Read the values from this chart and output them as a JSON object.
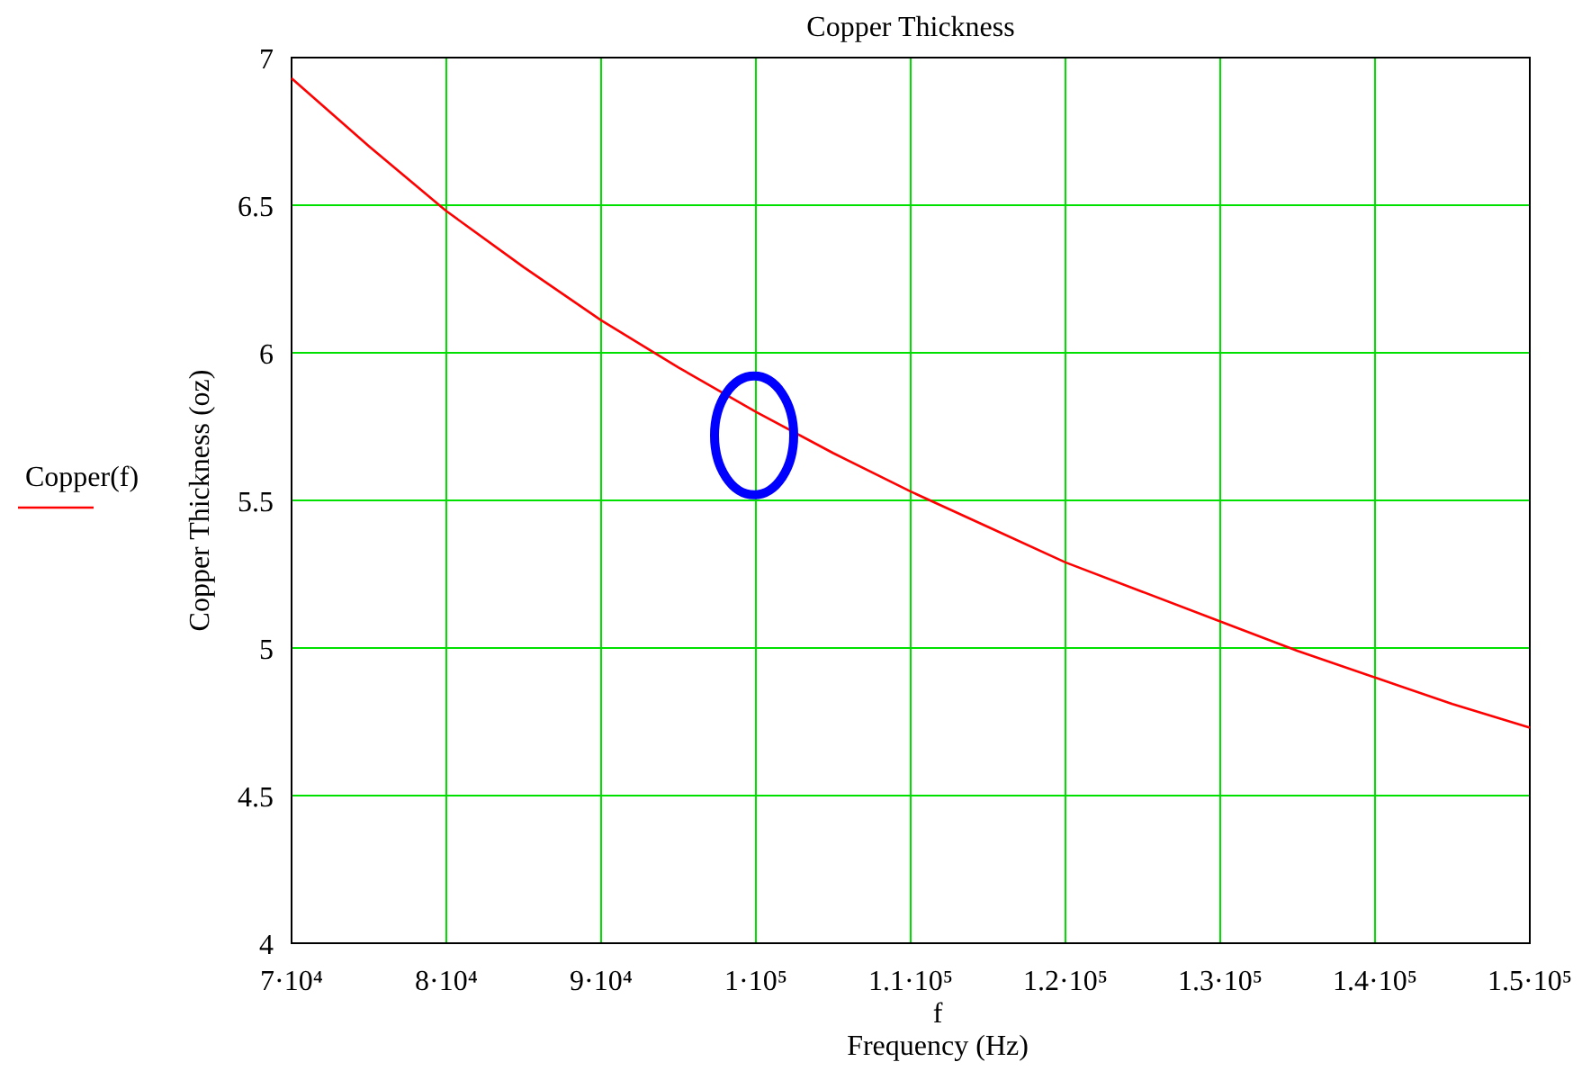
{
  "chart_data": {
    "type": "line",
    "title": "Copper Thickness",
    "xlabel": "f\nFrequency (Hz)",
    "ylabel": "Copper Thickness (oz)",
    "x": [
      70000,
      75000,
      80000,
      85000,
      90000,
      95000,
      100000,
      105000,
      110000,
      115000,
      120000,
      125000,
      130000,
      135000,
      140000,
      145000,
      150000
    ],
    "series": [
      {
        "name": "Copper(f)",
        "color": "#ff0000",
        "values": [
          6.93,
          6.7,
          6.48,
          6.29,
          6.11,
          5.95,
          5.8,
          5.66,
          5.53,
          5.41,
          5.29,
          5.19,
          5.09,
          4.99,
          4.9,
          4.81,
          4.73
        ]
      }
    ],
    "xlim": [
      70000,
      150000
    ],
    "xticks": [
      {
        "value": 70000,
        "label": "7·10⁴"
      },
      {
        "value": 80000,
        "label": "8·10⁴"
      },
      {
        "value": 90000,
        "label": "9·10⁴"
      },
      {
        "value": 100000,
        "label": "1·10⁵"
      },
      {
        "value": 110000,
        "label": "1.1·10⁵"
      },
      {
        "value": 120000,
        "label": "1.2·10⁵"
      },
      {
        "value": 130000,
        "label": "1.3·10⁵"
      },
      {
        "value": 140000,
        "label": "1.4·10⁵"
      },
      {
        "value": 150000,
        "label": "1.5·10⁵"
      }
    ],
    "ylim": [
      4,
      7
    ],
    "yticks": [
      4,
      4.5,
      5,
      5.5,
      6,
      6.5,
      7
    ],
    "grid": true,
    "legend": "left",
    "marker": "none",
    "line_style": "solid"
  }
}
